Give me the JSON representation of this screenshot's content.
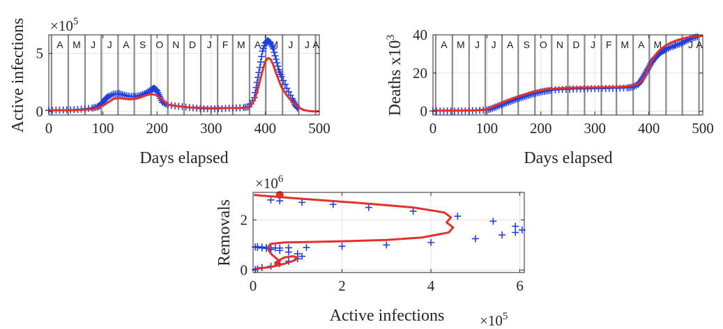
{
  "chart_data": [
    {
      "id": "p1",
      "type": "line",
      "xlabel": "Days elapsed",
      "ylabel": "Active  infections",
      "exponent_base": "×10",
      "exponent_power": "5",
      "xlim": [
        0,
        500
      ],
      "ylim": [
        -0.3,
        6.6
      ],
      "xticks": [
        0,
        100,
        200,
        300,
        400,
        500
      ],
      "xtick_labels": [
        "0",
        "100",
        "200",
        "300",
        "400",
        "500"
      ],
      "yticks": [
        0,
        5
      ],
      "ytick_labels": [
        "0",
        "5"
      ],
      "grid": true,
      "month_lines": [
        5,
        36,
        67,
        97,
        128,
        158,
        189,
        220,
        250,
        281,
        312,
        340,
        371,
        401,
        432,
        462,
        493
      ],
      "month_labels": [
        "A",
        "M",
        "J",
        "J",
        "A",
        "S",
        "O",
        "N",
        "D",
        "J",
        "F",
        "M",
        "A",
        "M",
        "J",
        "J",
        "A"
      ],
      "series": [
        {
          "style": "markers-plus",
          "color": "#1f3fe0",
          "x": [
            0,
            20,
            40,
            60,
            80,
            90,
            95,
            100,
            105,
            110,
            120,
            130,
            140,
            150,
            160,
            170,
            180,
            190,
            195,
            200,
            205,
            210,
            220,
            240,
            260,
            280,
            300,
            320,
            340,
            360,
            370,
            380,
            385,
            390,
            395,
            400,
            405,
            410,
            415,
            420,
            425,
            430,
            440,
            450,
            455,
            460
          ],
          "y": [
            0.1,
            0.12,
            0.15,
            0.2,
            0.3,
            0.4,
            0.55,
            0.8,
            1.1,
            1.3,
            1.5,
            1.55,
            1.4,
            1.3,
            1.3,
            1.4,
            1.6,
            1.9,
            2.0,
            1.8,
            1.3,
            0.8,
            0.55,
            0.45,
            0.35,
            0.25,
            0.22,
            0.25,
            0.3,
            0.35,
            0.4,
            1.2,
            2.5,
            3.8,
            5.2,
            5.9,
            6.1,
            5.9,
            5.4,
            4.5,
            3.6,
            3.0,
            2.0,
            1.1,
            0.6,
            0.3
          ]
        },
        {
          "style": "line",
          "color": "#e5302a",
          "x": [
            0,
            50,
            80,
            90,
            100,
            110,
            120,
            130,
            140,
            150,
            160,
            170,
            180,
            190,
            200,
            210,
            220,
            240,
            260,
            300,
            340,
            360,
            370,
            375,
            380,
            385,
            390,
            395,
            400,
            405,
            410,
            415,
            420,
            425,
            430,
            440,
            450,
            460,
            470,
            480,
            490,
            500
          ],
          "y": [
            0.1,
            0.12,
            0.2,
            0.3,
            0.5,
            0.8,
            1.1,
            1.15,
            1.1,
            1.05,
            1.1,
            1.25,
            1.4,
            1.5,
            1.4,
            1.0,
            0.6,
            0.45,
            0.35,
            0.3,
            0.3,
            0.3,
            0.4,
            0.6,
            1.0,
            1.7,
            2.6,
            3.5,
            4.3,
            4.6,
            4.5,
            4.0,
            3.3,
            2.7,
            2.1,
            1.4,
            0.8,
            0.4,
            0.15,
            0.05,
            0.02,
            0.01
          ]
        }
      ]
    },
    {
      "id": "p2",
      "type": "line",
      "xlabel": "Days elapsed",
      "ylabel": "Deaths x10",
      "ylabel_power": "3",
      "xlim": [
        0,
        500
      ],
      "ylim": [
        -2,
        40
      ],
      "xticks": [
        0,
        100,
        200,
        300,
        400,
        500
      ],
      "xtick_labels": [
        "0",
        "100",
        "200",
        "300",
        "400",
        "500"
      ],
      "yticks": [
        0,
        20,
        40
      ],
      "ytick_labels": [
        "0",
        "20",
        "40"
      ],
      "grid": true,
      "month_lines": [
        5,
        36,
        67,
        97,
        128,
        158,
        189,
        220,
        250,
        281,
        312,
        340,
        371,
        401,
        432,
        462,
        493
      ],
      "month_labels": [
        "A",
        "M",
        "J",
        "J",
        "A",
        "S",
        "O",
        "N",
        "D",
        "J",
        "F",
        "M",
        "A",
        "M",
        "J",
        "J",
        "A"
      ],
      "series": [
        {
          "style": "markers-plus",
          "color": "#1f3fe0",
          "x": [
            0,
            20,
            40,
            60,
            80,
            100,
            110,
            120,
            130,
            140,
            150,
            160,
            170,
            180,
            190,
            200,
            210,
            220,
            240,
            260,
            280,
            300,
            320,
            340,
            360,
            370,
            380,
            385,
            390,
            395,
            400,
            405,
            410,
            415,
            420,
            425,
            430,
            440,
            450,
            460,
            470,
            480,
            490
          ],
          "y": [
            0.1,
            0.1,
            0.1,
            0.2,
            0.3,
            0.6,
            1.5,
            2.6,
            3.7,
            4.8,
            5.8,
            6.8,
            7.7,
            8.6,
            9.4,
            10.1,
            10.6,
            11.0,
            11.4,
            11.6,
            11.7,
            11.8,
            11.9,
            12.0,
            12.2,
            12.6,
            14.0,
            15.8,
            18.0,
            20.5,
            23.0,
            25.5,
            27.5,
            29.0,
            30.5,
            31.5,
            32.2,
            33.5,
            34.5,
            35.5,
            37.0,
            38.3,
            39.0
          ]
        },
        {
          "style": "line",
          "color": "#e5302a",
          "x": [
            0,
            50,
            80,
            100,
            110,
            120,
            130,
            140,
            150,
            160,
            170,
            180,
            190,
            200,
            210,
            220,
            240,
            260,
            300,
            340,
            360,
            370,
            380,
            385,
            390,
            395,
            400,
            405,
            410,
            415,
            420,
            425,
            430,
            440,
            450,
            460,
            470,
            480,
            490,
            500
          ],
          "y": [
            0.3,
            0.3,
            0.4,
            1.0,
            2.2,
            3.4,
            4.6,
            5.8,
            6.9,
            7.9,
            8.8,
            9.6,
            10.3,
            10.9,
            11.4,
            11.7,
            12.1,
            12.3,
            12.5,
            12.7,
            13.0,
            13.4,
            14.3,
            15.5,
            17.5,
            20.0,
            23.0,
            26.0,
            28.5,
            30.5,
            32.0,
            33.2,
            34.2,
            35.8,
            37.0,
            37.8,
            38.6,
            39.1,
            39.4,
            39.5
          ]
        }
      ]
    },
    {
      "id": "p3",
      "type": "scatter",
      "xlabel": "Active infections",
      "ylabel": "Removals",
      "x_exponent_base": "×10",
      "x_exponent_power": "5",
      "y_exponent_base": "×10",
      "y_exponent_power": "6",
      "xlim": [
        0,
        6.1
      ],
      "ylim": [
        -0.1,
        3.1
      ],
      "xticks": [
        0,
        2,
        4,
        6
      ],
      "xtick_labels": [
        "0",
        "2",
        "4",
        "6"
      ],
      "yticks": [
        0,
        2
      ],
      "ytick_labels": [
        "0",
        "2"
      ],
      "grid": true,
      "series": [
        {
          "style": "markers-plus",
          "color": "#1f3fe0",
          "x": [
            0.05,
            0.1,
            0.2,
            0.4,
            0.6,
            0.8,
            1.0,
            1.1,
            1.0,
            0.8,
            0.6,
            0.4,
            0.3,
            0.2,
            0.1,
            0.05,
            0.1,
            0.2,
            0.3,
            0.4,
            0.5,
            0.6,
            0.8,
            1.2,
            2.0,
            3.0,
            4.0,
            5.0,
            5.6,
            5.9,
            6.05,
            5.9,
            5.4,
            4.6,
            3.6,
            2.6,
            1.8,
            1.1,
            0.6,
            0.4
          ],
          "y": [
            0.02,
            0.05,
            0.1,
            0.15,
            0.25,
            0.35,
            0.45,
            0.55,
            0.65,
            0.72,
            0.78,
            0.82,
            0.86,
            0.88,
            0.9,
            0.92,
            0.93,
            0.92,
            0.9,
            0.89,
            0.88,
            0.88,
            0.89,
            0.9,
            0.95,
            1.0,
            1.1,
            1.25,
            1.4,
            1.5,
            1.6,
            1.75,
            1.95,
            2.15,
            2.35,
            2.5,
            2.62,
            2.7,
            2.76,
            2.8
          ]
        },
        {
          "style": "line",
          "color": "#e5302a",
          "x": [
            0.05,
            0.2,
            0.4,
            0.6,
            0.8,
            0.95,
            1.0,
            0.9,
            0.7,
            0.6,
            0.5,
            0.5,
            0.6,
            0.5,
            0.4,
            0.35,
            0.35,
            0.4,
            0.7,
            1.2,
            2.0,
            3.0,
            3.8,
            4.4,
            4.5,
            4.35,
            4.45,
            4.3,
            3.6,
            2.6,
            1.6,
            0.9,
            0.5,
            0.2,
            0.02
          ],
          "y": [
            0.05,
            0.08,
            0.12,
            0.2,
            0.3,
            0.4,
            0.5,
            0.55,
            0.5,
            0.4,
            0.3,
            0.2,
            0.35,
            0.5,
            0.65,
            0.8,
            0.95,
            1.05,
            1.1,
            1.12,
            1.15,
            1.2,
            1.3,
            1.5,
            1.7,
            1.9,
            2.1,
            2.3,
            2.5,
            2.65,
            2.78,
            2.87,
            2.93,
            2.97,
            3.0
          ]
        },
        {
          "style": "marker-dot",
          "color": "#e5302a",
          "x": [
            0.6
          ],
          "y": [
            3.0
          ]
        }
      ]
    }
  ]
}
